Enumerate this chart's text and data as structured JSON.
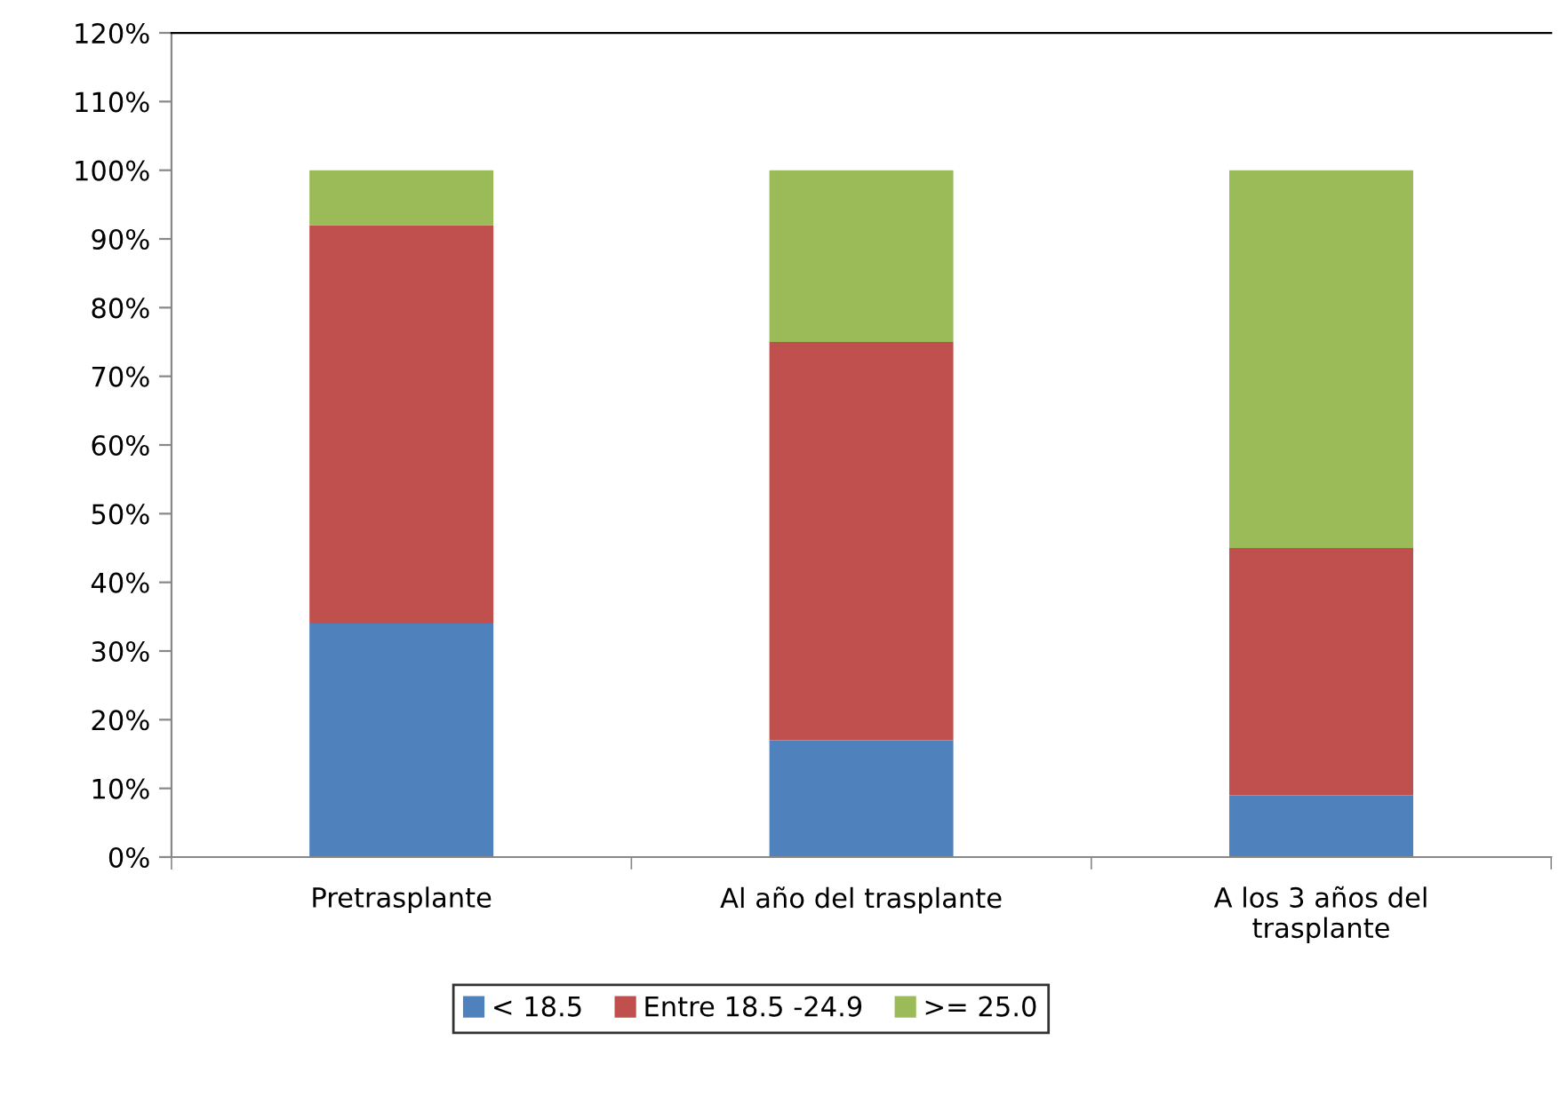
{
  "chart_data": {
    "type": "bar",
    "stacked": true,
    "categories": [
      "Pretrasplante",
      "Al año del trasplante",
      "A los 3 años del\ntrasplante"
    ],
    "series": [
      {
        "name": "< 18.5",
        "color": "#4f81bd",
        "values": [
          34,
          17,
          9
        ]
      },
      {
        "name": "Entre 18.5 -24.9",
        "color": "#c0504d",
        "values": [
          58,
          58,
          36
        ]
      },
      {
        "name": ">= 25.0",
        "color": "#9bbb59",
        "values": [
          8,
          25,
          55
        ]
      }
    ],
    "ylim": [
      0,
      120
    ],
    "yticks": [
      {
        "value": 0,
        "label": "0%"
      },
      {
        "value": 10,
        "label": "10%"
      },
      {
        "value": 20,
        "label": "20%"
      },
      {
        "value": 30,
        "label": "30%"
      },
      {
        "value": 40,
        "label": "40%"
      },
      {
        "value": 50,
        "label": "50%"
      },
      {
        "value": 60,
        "label": "60%"
      },
      {
        "value": 70,
        "label": "70%"
      },
      {
        "value": 80,
        "label": "80%"
      },
      {
        "value": 90,
        "label": "90%"
      },
      {
        "value": 100,
        "label": "100%"
      },
      {
        "value": 110,
        "label": "110%"
      },
      {
        "value": 120,
        "label": "120%"
      }
    ],
    "grid": false,
    "legend": "bottom"
  }
}
